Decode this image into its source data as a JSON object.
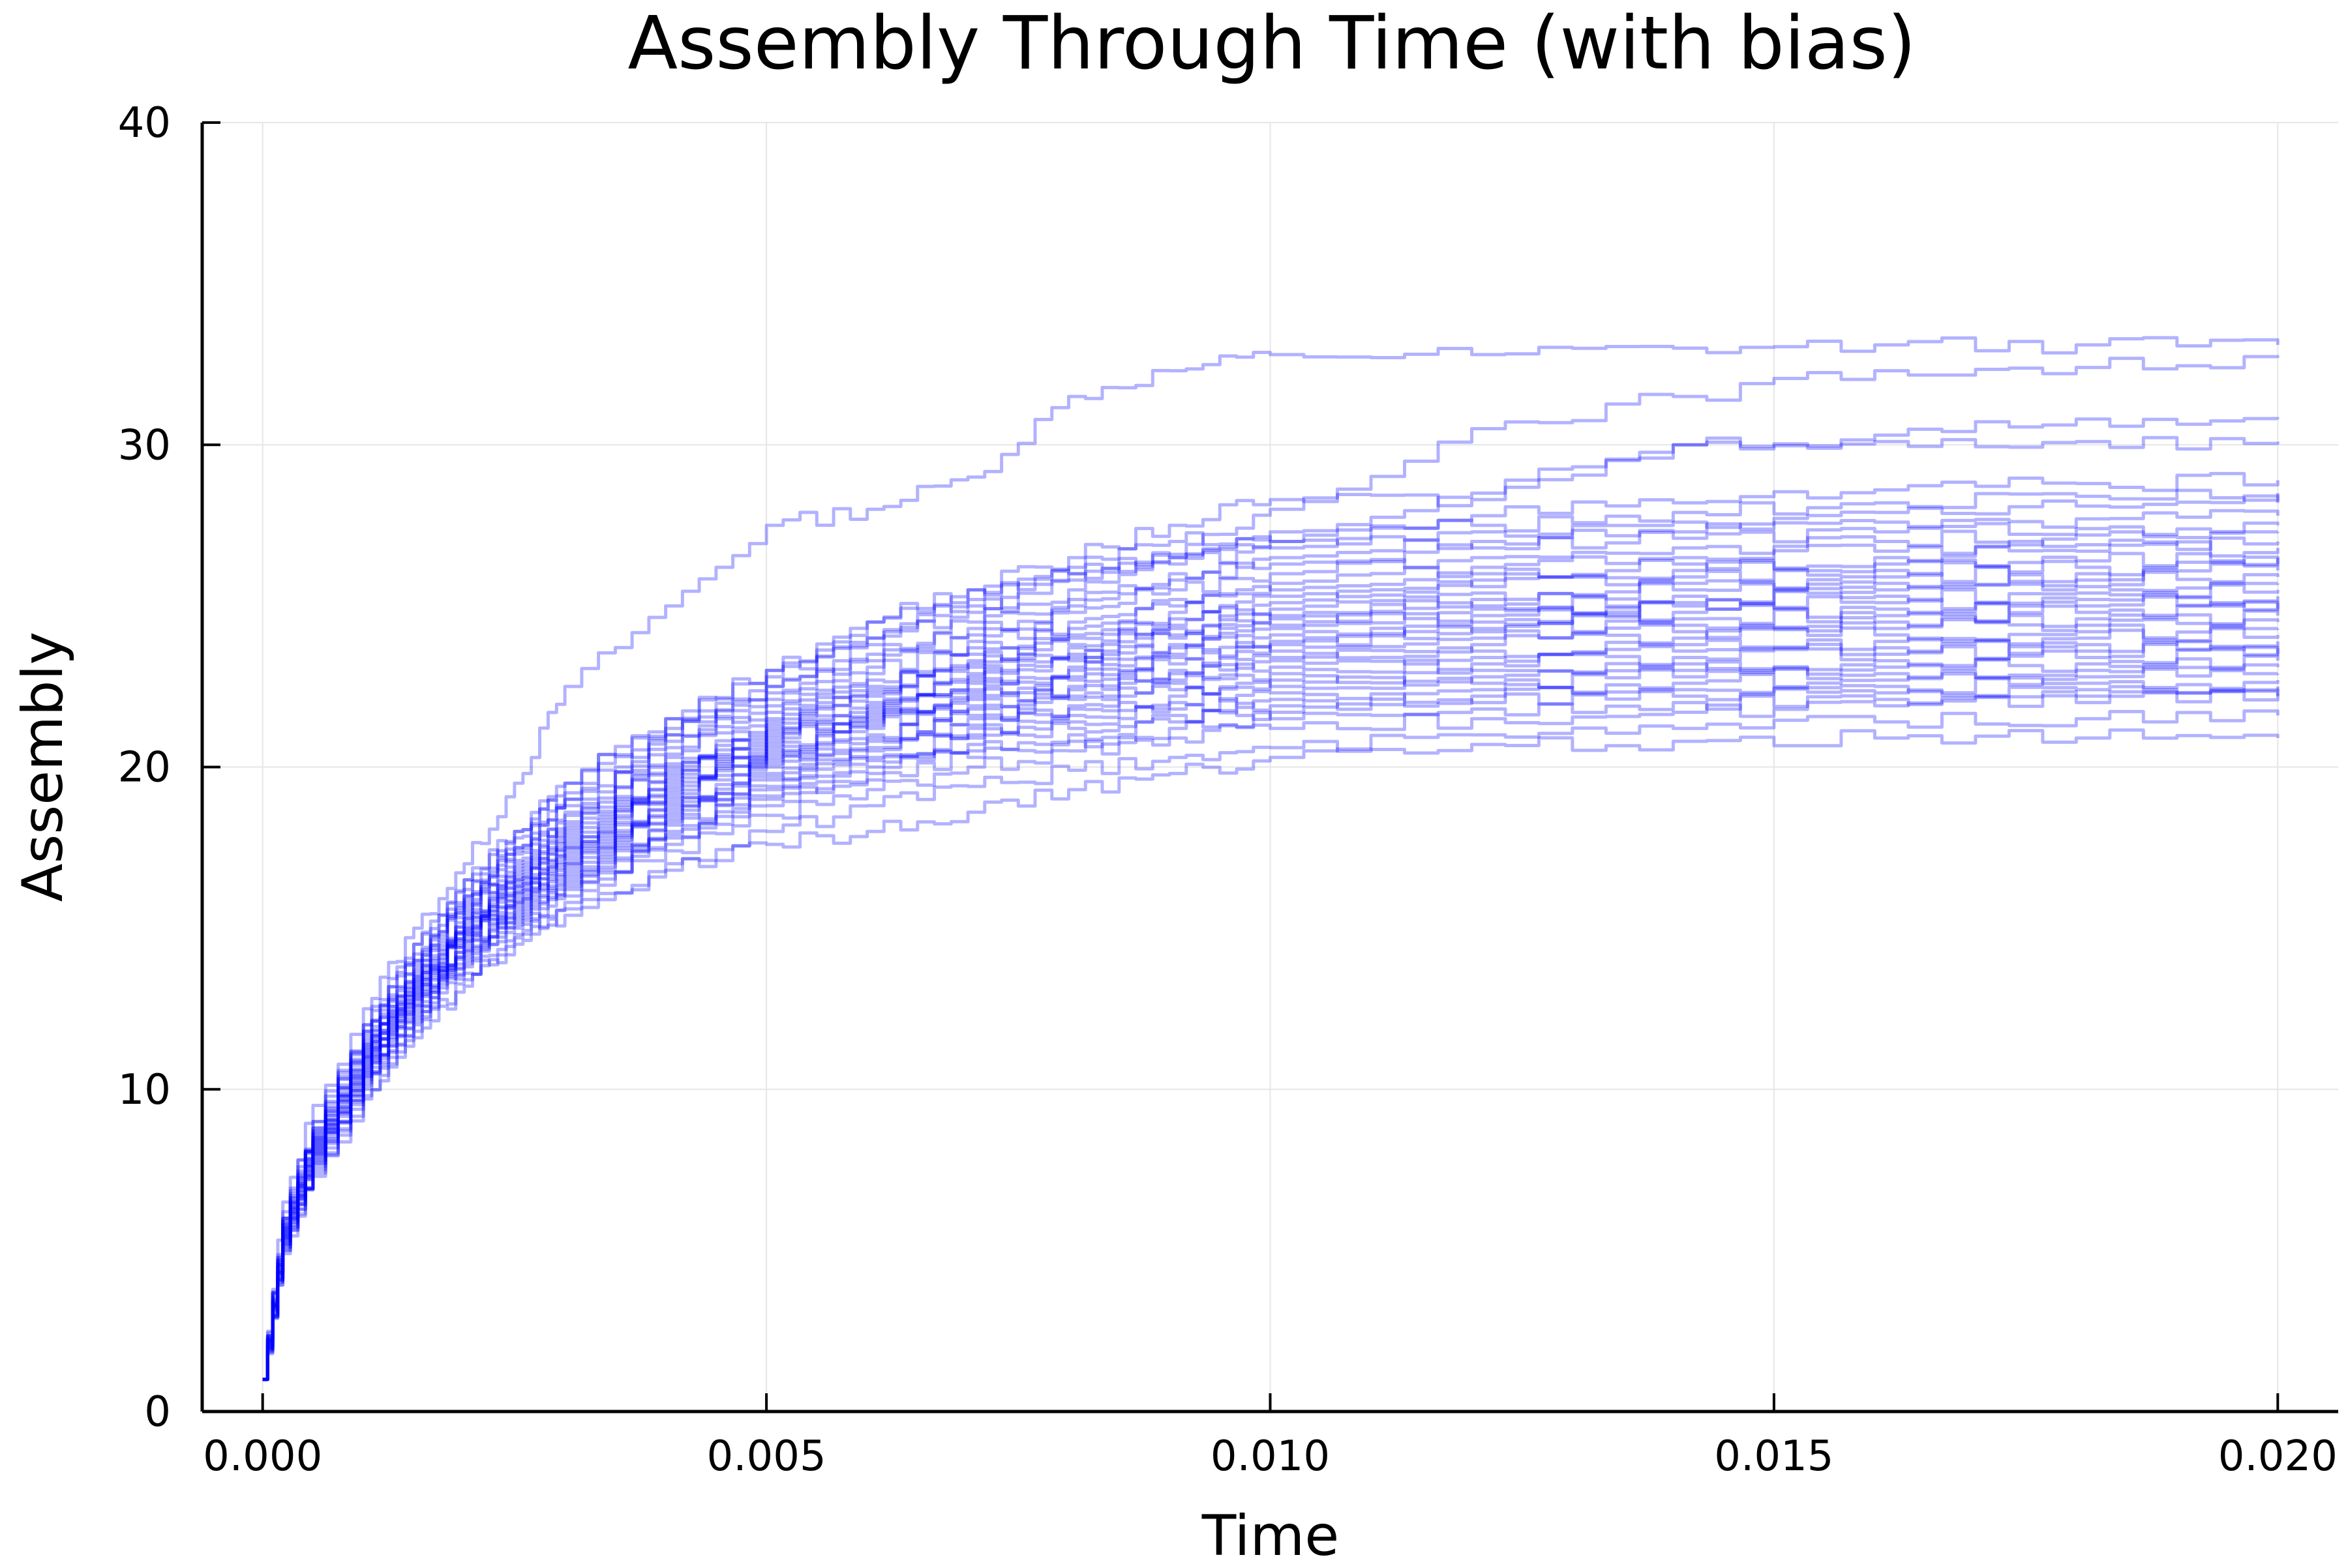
{
  "chart_data": {
    "type": "line",
    "title": "Assembly Through Time (with bias)",
    "xlabel": "Time",
    "ylabel": "Assembly",
    "xlim": [
      -0.0006,
      0.0206
    ],
    "ylim": [
      0,
      40
    ],
    "xticks": [
      0.0,
      0.005,
      0.01,
      0.015,
      0.02
    ],
    "xtick_labels": [
      "0.000",
      "0.005",
      "0.010",
      "0.015",
      "0.020"
    ],
    "yticks": [
      0,
      10,
      20,
      30,
      40
    ],
    "ytick_labels": [
      "0",
      "10",
      "20",
      "30",
      "40"
    ],
    "grid": true,
    "legend": "none",
    "line_color": "#0000ff",
    "line_opacity": 0.3,
    "x": [
      0.0,
      0.0002,
      0.0005,
      0.001,
      0.0015,
      0.002,
      0.0025,
      0.003,
      0.004,
      0.005,
      0.006,
      0.007,
      0.008,
      0.009,
      0.01,
      0.012,
      0.014,
      0.016,
      0.018,
      0.02
    ],
    "series": [
      {
        "values": [
          1,
          6.5,
          9.5,
          12.5,
          15.0,
          17.0,
          19.5,
          22.5,
          25.0,
          27.5,
          28.0,
          29.0,
          31.5,
          32.3,
          32.8,
          32.8,
          33.0,
          33.1,
          33.1,
          33.1
        ]
      },
      {
        "values": [
          1,
          6.2,
          9.0,
          12.0,
          14.5,
          16.5,
          18.0,
          19.5,
          21.5,
          23.0,
          24.5,
          25.5,
          26.0,
          26.5,
          28.0,
          30.5,
          31.5,
          32.3,
          32.4,
          32.7
        ]
      },
      {
        "values": [
          1,
          6.0,
          9.0,
          12.0,
          14.5,
          16.5,
          18.0,
          19.5,
          21.5,
          23.0,
          24.5,
          25.5,
          26.5,
          27.5,
          28.3,
          28.3,
          30.0,
          30.3,
          30.8,
          30.8
        ]
      },
      {
        "values": [
          1,
          6.0,
          8.8,
          11.8,
          14.0,
          16.0,
          17.5,
          19.0,
          21.0,
          22.5,
          24.0,
          25.0,
          26.0,
          26.5,
          27.0,
          28.5,
          30.0,
          30.1,
          30.1,
          30.1
        ]
      },
      {
        "values": [
          1,
          6.0,
          8.8,
          11.8,
          14.2,
          16.2,
          17.8,
          19.2,
          21.2,
          22.8,
          24.0,
          25.2,
          26.2,
          27.0,
          27.3,
          27.8,
          28.2,
          28.6,
          28.8,
          28.9
        ]
      },
      {
        "values": [
          1,
          5.9,
          8.7,
          11.7,
          14.0,
          16.0,
          17.5,
          19.0,
          21.0,
          22.5,
          23.8,
          24.8,
          25.8,
          26.6,
          27.0,
          27.5,
          27.9,
          28.2,
          28.4,
          28.5
        ]
      },
      {
        "values": [
          1,
          5.9,
          8.7,
          11.6,
          13.9,
          15.9,
          17.4,
          18.8,
          20.8,
          22.3,
          23.5,
          24.5,
          25.5,
          26.3,
          26.8,
          27.3,
          27.6,
          27.9,
          28.1,
          28.2
        ]
      },
      {
        "values": [
          1,
          5.8,
          8.6,
          11.5,
          13.8,
          15.8,
          17.3,
          18.6,
          20.6,
          22.1,
          23.3,
          24.3,
          25.2,
          26.0,
          26.5,
          27.0,
          27.3,
          27.6,
          27.7,
          27.8
        ]
      },
      {
        "values": [
          1,
          5.8,
          8.6,
          11.4,
          13.7,
          15.7,
          17.1,
          18.5,
          20.4,
          21.9,
          23.1,
          24.1,
          25.0,
          25.8,
          26.3,
          26.8,
          27.1,
          27.3,
          27.4,
          27.5
        ]
      },
      {
        "values": [
          1,
          5.8,
          8.5,
          11.4,
          13.6,
          15.6,
          17.0,
          18.3,
          20.3,
          21.7,
          22.9,
          23.9,
          24.8,
          25.5,
          26.0,
          26.5,
          26.8,
          27.0,
          27.2,
          27.3
        ]
      },
      {
        "values": [
          1,
          5.7,
          8.5,
          11.3,
          13.5,
          15.5,
          16.9,
          18.2,
          20.1,
          21.5,
          22.7,
          23.7,
          24.5,
          25.2,
          25.7,
          26.2,
          26.5,
          26.7,
          26.9,
          27.0
        ]
      },
      {
        "values": [
          1,
          5.7,
          8.5,
          11.3,
          13.5,
          15.4,
          16.8,
          18.1,
          20.0,
          21.4,
          22.5,
          23.5,
          24.3,
          25.0,
          25.5,
          26.0,
          26.3,
          26.5,
          26.7,
          26.8
        ]
      },
      {
        "values": [
          1,
          5.7,
          8.4,
          11.2,
          13.4,
          15.3,
          16.7,
          18.0,
          19.9,
          21.3,
          22.4,
          23.3,
          24.1,
          24.8,
          25.3,
          25.8,
          26.1,
          26.3,
          26.4,
          26.5
        ]
      },
      {
        "values": [
          1,
          5.7,
          8.4,
          11.2,
          13.4,
          15.3,
          16.6,
          17.9,
          19.8,
          21.2,
          22.3,
          23.2,
          24.0,
          24.6,
          25.1,
          25.6,
          25.9,
          26.1,
          26.2,
          26.3
        ]
      },
      {
        "values": [
          1,
          5.6,
          8.4,
          11.1,
          13.3,
          15.2,
          16.5,
          17.8,
          19.7,
          21.1,
          22.2,
          23.1,
          23.8,
          24.4,
          24.9,
          25.4,
          25.7,
          25.9,
          26.0,
          26.1
        ]
      },
      {
        "values": [
          1,
          5.6,
          8.3,
          11.1,
          13.3,
          15.1,
          16.5,
          17.7,
          19.6,
          21.0,
          22.0,
          22.9,
          23.7,
          24.3,
          24.7,
          25.2,
          25.5,
          25.7,
          25.8,
          25.9
        ]
      },
      {
        "values": [
          1,
          5.6,
          8.3,
          11.0,
          13.2,
          15.0,
          16.4,
          17.6,
          19.5,
          20.9,
          21.9,
          22.8,
          23.5,
          24.1,
          24.6,
          25.0,
          25.3,
          25.5,
          25.6,
          25.7
        ]
      },
      {
        "values": [
          1,
          5.6,
          8.3,
          11.0,
          13.2,
          15.0,
          16.3,
          17.5,
          19.4,
          20.8,
          21.8,
          22.7,
          23.4,
          24.0,
          24.4,
          24.9,
          25.1,
          25.3,
          25.4,
          25.5
        ]
      },
      {
        "values": [
          1,
          5.5,
          8.2,
          11.0,
          13.1,
          14.9,
          16.3,
          17.5,
          19.3,
          20.7,
          21.7,
          22.6,
          23.3,
          23.8,
          24.3,
          24.7,
          25.0,
          25.1,
          25.2,
          25.3
        ]
      },
      {
        "values": [
          1,
          5.5,
          8.2,
          10.9,
          13.1,
          14.9,
          16.2,
          17.4,
          19.2,
          20.6,
          21.6,
          22.4,
          23.1,
          23.7,
          24.1,
          24.5,
          24.8,
          24.9,
          25.0,
          25.1
        ]
      },
      {
        "values": [
          1,
          5.5,
          8.2,
          10.9,
          13.0,
          14.8,
          16.1,
          17.3,
          19.1,
          20.5,
          21.5,
          22.3,
          23.0,
          23.5,
          23.9,
          24.3,
          24.6,
          24.7,
          24.8,
          24.9
        ]
      },
      {
        "values": [
          1,
          5.5,
          8.1,
          10.8,
          13.0,
          14.8,
          16.1,
          17.2,
          19.0,
          20.4,
          21.4,
          22.2,
          22.8,
          23.4,
          23.8,
          24.2,
          24.4,
          24.5,
          24.6,
          24.7
        ]
      },
      {
        "values": [
          1,
          5.4,
          8.1,
          10.8,
          12.9,
          14.7,
          16.0,
          17.1,
          18.9,
          20.3,
          21.3,
          22.1,
          22.7,
          23.2,
          23.6,
          24.0,
          24.2,
          24.3,
          24.4,
          24.5
        ]
      },
      {
        "values": [
          1,
          5.4,
          8.1,
          10.7,
          12.9,
          14.6,
          15.9,
          17.0,
          18.8,
          20.2,
          21.2,
          21.9,
          22.5,
          23.0,
          23.4,
          23.8,
          24.0,
          24.1,
          24.2,
          24.3
        ]
      },
      {
        "values": [
          1,
          5.4,
          8.0,
          10.7,
          12.8,
          14.6,
          15.8,
          17.0,
          18.7,
          20.1,
          21.0,
          21.8,
          22.4,
          22.9,
          23.3,
          23.6,
          23.8,
          23.9,
          24.0,
          24.1
        ]
      },
      {
        "values": [
          1,
          5.4,
          8.0,
          10.6,
          12.8,
          14.5,
          15.8,
          16.9,
          18.6,
          20.0,
          20.9,
          21.6,
          22.2,
          22.7,
          23.1,
          23.4,
          23.6,
          23.7,
          23.8,
          23.9
        ]
      },
      {
        "values": [
          1,
          5.3,
          8.0,
          10.6,
          12.7,
          14.4,
          15.7,
          16.8,
          18.5,
          19.8,
          20.8,
          21.5,
          22.1,
          22.6,
          22.9,
          23.2,
          23.4,
          23.5,
          23.6,
          23.7
        ]
      },
      {
        "values": [
          1,
          5.3,
          7.9,
          10.5,
          12.6,
          14.3,
          15.6,
          16.7,
          18.4,
          19.7,
          20.6,
          21.3,
          21.9,
          22.4,
          22.7,
          23.0,
          23.2,
          23.3,
          23.4,
          23.5
        ]
      },
      {
        "values": [
          1,
          5.3,
          7.9,
          10.5,
          12.6,
          14.3,
          15.5,
          16.6,
          18.3,
          19.6,
          20.5,
          21.2,
          21.8,
          22.2,
          22.5,
          22.8,
          23.0,
          23.1,
          23.2,
          23.3
        ]
      },
      {
        "values": [
          1,
          5.2,
          7.8,
          10.4,
          12.5,
          14.2,
          15.4,
          16.5,
          18.2,
          19.4,
          20.3,
          21.0,
          21.6,
          22.0,
          22.3,
          22.6,
          22.8,
          22.9,
          23.0,
          23.1
        ]
      },
      {
        "values": [
          1,
          5.2,
          7.8,
          10.4,
          12.4,
          14.1,
          15.3,
          16.4,
          18.0,
          19.3,
          20.2,
          20.9,
          21.4,
          21.8,
          22.1,
          22.4,
          22.6,
          22.7,
          22.8,
          22.9
        ]
      },
      {
        "values": [
          1,
          5.2,
          7.7,
          10.3,
          12.3,
          14.0,
          15.2,
          16.3,
          17.9,
          19.1,
          20.0,
          20.7,
          21.2,
          21.6,
          21.9,
          22.2,
          22.4,
          22.5,
          22.6,
          22.7
        ]
      },
      {
        "values": [
          1,
          5.1,
          7.7,
          10.2,
          12.2,
          13.9,
          15.1,
          16.2,
          17.8,
          19.0,
          19.8,
          20.5,
          21.0,
          21.4,
          21.7,
          22.0,
          22.2,
          22.3,
          22.4,
          22.5
        ]
      },
      {
        "values": [
          1,
          5.1,
          7.6,
          10.1,
          12.1,
          13.8,
          15.0,
          16.0,
          17.6,
          18.8,
          19.6,
          20.3,
          20.8,
          21.2,
          21.5,
          21.8,
          22.0,
          22.1,
          22.2,
          22.3
        ]
      },
      {
        "values": [
          1,
          5.0,
          7.5,
          10.0,
          12.0,
          13.6,
          14.8,
          15.8,
          17.4,
          18.5,
          19.3,
          20.0,
          20.5,
          20.9,
          21.2,
          21.5,
          21.7,
          21.9,
          22.0,
          22.2
        ]
      },
      {
        "values": [
          1,
          5.0,
          7.4,
          9.8,
          11.8,
          13.4,
          14.7,
          15.6,
          17.0,
          18.0,
          18.8,
          19.4,
          19.9,
          20.3,
          20.6,
          21.0,
          21.2,
          21.4,
          21.5,
          21.6
        ]
      },
      {
        "values": [
          1,
          4.9,
          7.3,
          9.7,
          11.6,
          13.2,
          14.5,
          15.4,
          16.8,
          17.6,
          18.0,
          18.6,
          19.3,
          19.8,
          20.3,
          20.7,
          20.8,
          20.9,
          20.9,
          20.9
        ]
      }
    ]
  }
}
